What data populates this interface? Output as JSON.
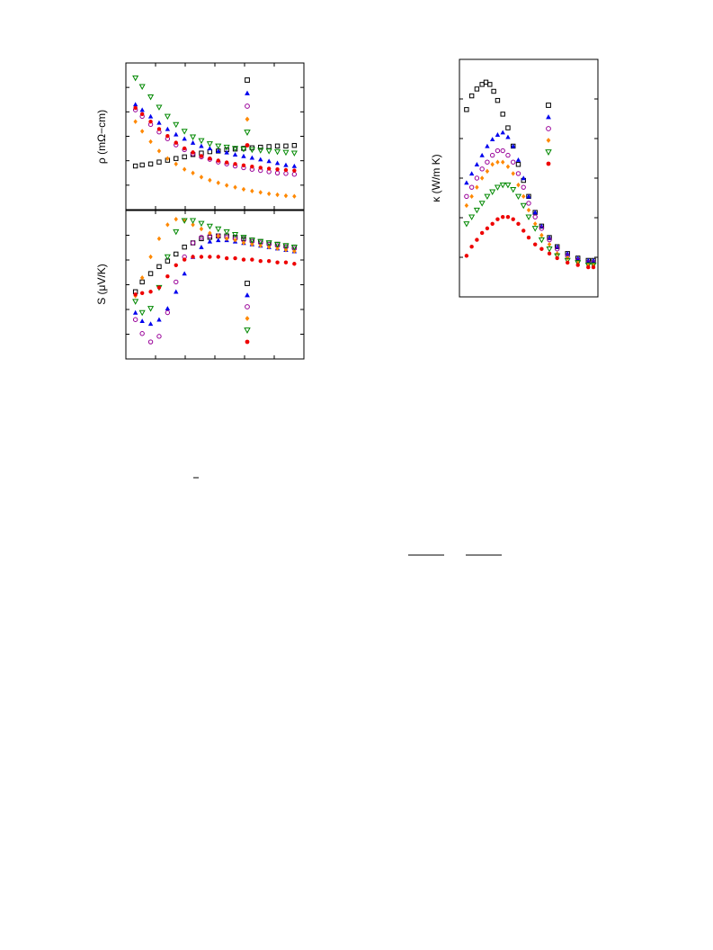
{
  "chart_data": [
    {
      "type": "scatter",
      "panel": "resistivity",
      "ylabel": "ρ (mΩ−cm)",
      "x_scale": "linear",
      "y_scale": "log",
      "legend_placement": "top-right",
      "colors": [
        "#000000",
        "#0000ee",
        "#990099",
        "#ff8800",
        "#008800",
        "#ee0000"
      ],
      "markers": [
        "square-open",
        "triangle-up",
        "circle-open",
        "diamond",
        "triangle-down-open",
        "circle"
      ],
      "series": [
        {
          "x": [
            0.03,
            0.07,
            0.12,
            0.17,
            0.22,
            0.27,
            0.32,
            0.37,
            0.42,
            0.47,
            0.52,
            0.57,
            0.62,
            0.67,
            0.72,
            0.77,
            0.82,
            0.87,
            0.92,
            0.97
          ],
          "y": [
            0.16,
            0.165,
            0.17,
            0.18,
            0.19,
            0.2,
            0.21,
            0.225,
            0.235,
            0.245,
            0.25,
            0.26,
            0.265,
            0.27,
            0.275,
            0.28,
            0.285,
            0.29,
            0.29,
            0.295
          ]
        },
        {
          "x": [
            0.03,
            0.07,
            0.12,
            0.17,
            0.22,
            0.27,
            0.32,
            0.37,
            0.42,
            0.47,
            0.52,
            0.57,
            0.62,
            0.67,
            0.72,
            0.77,
            0.82,
            0.87,
            0.92,
            0.97
          ],
          "y": [
            1.0,
            0.85,
            0.7,
            0.58,
            0.48,
            0.41,
            0.36,
            0.32,
            0.29,
            0.27,
            0.25,
            0.24,
            0.225,
            0.215,
            0.205,
            0.195,
            0.185,
            0.175,
            0.165,
            0.16
          ]
        },
        {
          "x": [
            0.03,
            0.07,
            0.12,
            0.17,
            0.22,
            0.27,
            0.32,
            0.37,
            0.42,
            0.47,
            0.52,
            0.57,
            0.62,
            0.67,
            0.72,
            0.77,
            0.82,
            0.87,
            0.92,
            0.97
          ],
          "y": [
            0.85,
            0.7,
            0.55,
            0.44,
            0.36,
            0.3,
            0.26,
            0.23,
            0.21,
            0.195,
            0.18,
            0.17,
            0.16,
            0.152,
            0.145,
            0.14,
            0.135,
            0.13,
            0.128,
            0.125
          ]
        },
        {
          "x": [
            0.03,
            0.07,
            0.12,
            0.17,
            0.22,
            0.27,
            0.32,
            0.37,
            0.42,
            0.47,
            0.52,
            0.57,
            0.62,
            0.67,
            0.72,
            0.77,
            0.82,
            0.87,
            0.92,
            0.97
          ],
          "y": [
            0.6,
            0.45,
            0.33,
            0.25,
            0.2,
            0.17,
            0.145,
            0.13,
            0.115,
            0.105,
            0.097,
            0.09,
            0.085,
            0.08,
            0.076,
            0.073,
            0.07,
            0.068,
            0.066,
            0.065
          ]
        },
        {
          "x": [
            0.03,
            0.07,
            0.12,
            0.17,
            0.22,
            0.27,
            0.32,
            0.37,
            0.42,
            0.47,
            0.52,
            0.57,
            0.62,
            0.67,
            0.72,
            0.77,
            0.82,
            0.87,
            0.92,
            0.97
          ],
          "y": [
            2.2,
            1.7,
            1.25,
            0.92,
            0.7,
            0.55,
            0.45,
            0.38,
            0.34,
            0.31,
            0.29,
            0.28,
            0.27,
            0.265,
            0.26,
            0.255,
            0.25,
            0.245,
            0.24,
            0.235
          ]
        },
        {
          "x": [
            0.03,
            0.07,
            0.12,
            0.17,
            0.22,
            0.27,
            0.32,
            0.37,
            0.42,
            0.47,
            0.52,
            0.57,
            0.62,
            0.67,
            0.72,
            0.77,
            0.82,
            0.87,
            0.92,
            0.97
          ],
          "y": [
            0.9,
            0.75,
            0.6,
            0.48,
            0.39,
            0.32,
            0.27,
            0.24,
            0.215,
            0.2,
            0.188,
            0.178,
            0.17,
            0.163,
            0.157,
            0.152,
            0.148,
            0.145,
            0.142,
            0.14
          ]
        }
      ]
    },
    {
      "type": "scatter",
      "panel": "thermopower",
      "ylabel": "S (μV/K)",
      "x_scale": "linear",
      "legend_placement": "bottom-right",
      "colors": [
        "#000000",
        "#0000ee",
        "#990099",
        "#ff8800",
        "#008800",
        "#ee0000"
      ],
      "markers": [
        "square-open",
        "triangle-up",
        "circle-open",
        "diamond",
        "triangle-down-open",
        "circle"
      ],
      "series": [
        {
          "x": [
            0.03,
            0.07,
            0.12,
            0.17,
            0.22,
            0.27,
            0.32,
            0.37,
            0.42,
            0.47,
            0.52,
            0.57,
            0.62,
            0.67,
            0.72,
            0.77,
            0.82,
            0.87,
            0.92,
            0.97
          ],
          "y": [
            0.45,
            0.52,
            0.58,
            0.63,
            0.67,
            0.72,
            0.77,
            0.8,
            0.83,
            0.84,
            0.85,
            0.85,
            0.84,
            0.83,
            0.82,
            0.81,
            0.8,
            0.79,
            0.78,
            0.77
          ]
        },
        {
          "x": [
            0.03,
            0.07,
            0.12,
            0.17,
            0.22,
            0.27,
            0.32,
            0.37,
            0.42,
            0.47,
            0.52,
            0.57,
            0.62,
            0.67,
            0.72,
            0.77,
            0.82,
            0.87,
            0.92,
            0.97
          ],
          "y": [
            0.3,
            0.24,
            0.22,
            0.25,
            0.33,
            0.45,
            0.58,
            0.7,
            0.77,
            0.81,
            0.82,
            0.82,
            0.81,
            0.8,
            0.79,
            0.78,
            0.77,
            0.76,
            0.75,
            0.74
          ]
        },
        {
          "x": [
            0.03,
            0.07,
            0.12,
            0.17,
            0.22,
            0.27,
            0.32,
            0.37,
            0.42,
            0.47,
            0.52,
            0.57,
            0.62,
            0.67,
            0.72,
            0.77,
            0.82,
            0.87,
            0.92,
            0.97
          ],
          "y": [
            0.25,
            0.15,
            0.09,
            0.13,
            0.3,
            0.52,
            0.7,
            0.8,
            0.84,
            0.85,
            0.85,
            0.84,
            0.83,
            0.82,
            0.81,
            0.8,
            0.79,
            0.78,
            0.77,
            0.76
          ]
        },
        {
          "x": [
            0.03,
            0.07,
            0.12,
            0.17,
            0.22,
            0.27,
            0.32,
            0.37,
            0.42,
            0.47,
            0.52,
            0.57,
            0.62,
            0.67,
            0.72,
            0.77,
            0.82,
            0.87,
            0.92,
            0.97
          ],
          "y": [
            0.42,
            0.55,
            0.7,
            0.83,
            0.93,
            0.97,
            0.96,
            0.93,
            0.9,
            0.87,
            0.85,
            0.83,
            0.82,
            0.8,
            0.79,
            0.78,
            0.77,
            0.76,
            0.75,
            0.74
          ]
        },
        {
          "x": [
            0.03,
            0.07,
            0.12,
            0.17,
            0.22,
            0.27,
            0.32,
            0.37,
            0.42,
            0.47,
            0.52,
            0.57,
            0.62,
            0.67,
            0.72,
            0.77,
            0.82,
            0.87,
            0.92,
            0.97
          ],
          "y": [
            0.38,
            0.3,
            0.33,
            0.48,
            0.7,
            0.88,
            0.96,
            0.96,
            0.94,
            0.92,
            0.9,
            0.88,
            0.86,
            0.84,
            0.82,
            0.81,
            0.8,
            0.79,
            0.78,
            0.77
          ]
        },
        {
          "x": [
            0.03,
            0.07,
            0.12,
            0.17,
            0.22,
            0.27,
            0.32,
            0.37,
            0.42,
            0.47,
            0.52,
            0.57,
            0.62,
            0.67,
            0.72,
            0.77,
            0.82,
            0.87,
            0.92,
            0.97
          ],
          "y": [
            0.43,
            0.44,
            0.45,
            0.48,
            0.56,
            0.64,
            0.68,
            0.7,
            0.7,
            0.7,
            0.7,
            0.69,
            0.69,
            0.68,
            0.68,
            0.67,
            0.67,
            0.66,
            0.66,
            0.65
          ]
        }
      ]
    },
    {
      "type": "scatter",
      "panel": "thermal-conductivity",
      "ylabel": "κ (W/m K)",
      "x_scale": "log",
      "legend_placement": "top-right",
      "colors": [
        "#000000",
        "#0000ee",
        "#990099",
        "#ff8800",
        "#008800",
        "#ee0000"
      ],
      "markers": [
        "square-open",
        "triangle-up",
        "circle-open",
        "diamond",
        "triangle-down-open",
        "circle"
      ],
      "series": [
        {
          "x": [
            0.02,
            0.06,
            0.1,
            0.14,
            0.17,
            0.2,
            0.23,
            0.26,
            0.3,
            0.34,
            0.38,
            0.42,
            0.46,
            0.5,
            0.55,
            0.6,
            0.66,
            0.72,
            0.8,
            0.88,
            0.96,
            1.0
          ],
          "y": [
            0.8,
            0.86,
            0.89,
            0.91,
            0.92,
            0.91,
            0.88,
            0.84,
            0.78,
            0.72,
            0.64,
            0.56,
            0.49,
            0.42,
            0.35,
            0.29,
            0.24,
            0.2,
            0.17,
            0.15,
            0.14,
            0.14
          ]
        },
        {
          "x": [
            0.02,
            0.06,
            0.1,
            0.14,
            0.18,
            0.22,
            0.26,
            0.3,
            0.34,
            0.38,
            0.42,
            0.46,
            0.5,
            0.55,
            0.6,
            0.66,
            0.72,
            0.8,
            0.88,
            0.96,
            1.0
          ],
          "y": [
            0.48,
            0.52,
            0.56,
            0.6,
            0.64,
            0.67,
            0.69,
            0.7,
            0.68,
            0.64,
            0.58,
            0.5,
            0.42,
            0.35,
            0.29,
            0.24,
            0.2,
            0.17,
            0.15,
            0.14,
            0.14
          ]
        },
        {
          "x": [
            0.02,
            0.06,
            0.1,
            0.14,
            0.18,
            0.22,
            0.26,
            0.3,
            0.34,
            0.38,
            0.42,
            0.46,
            0.5,
            0.55,
            0.6,
            0.66,
            0.72,
            0.8,
            0.88,
            0.96,
            1.0
          ],
          "y": [
            0.42,
            0.46,
            0.5,
            0.54,
            0.57,
            0.6,
            0.62,
            0.62,
            0.6,
            0.57,
            0.52,
            0.46,
            0.39,
            0.33,
            0.28,
            0.23,
            0.19,
            0.16,
            0.14,
            0.13,
            0.13
          ]
        },
        {
          "x": [
            0.02,
            0.06,
            0.1,
            0.14,
            0.18,
            0.22,
            0.26,
            0.3,
            0.34,
            0.38,
            0.42,
            0.46,
            0.5,
            0.55,
            0.6,
            0.66,
            0.72,
            0.8,
            0.88,
            0.96,
            1.0
          ],
          "y": [
            0.38,
            0.42,
            0.46,
            0.5,
            0.53,
            0.56,
            0.57,
            0.57,
            0.55,
            0.52,
            0.47,
            0.42,
            0.36,
            0.3,
            0.25,
            0.21,
            0.17,
            0.15,
            0.13,
            0.12,
            0.12
          ]
        },
        {
          "x": [
            0.02,
            0.06,
            0.1,
            0.14,
            0.18,
            0.22,
            0.26,
            0.3,
            0.34,
            0.38,
            0.42,
            0.46,
            0.5,
            0.55,
            0.6,
            0.66,
            0.72,
            0.8,
            0.88,
            0.96,
            1.0
          ],
          "y": [
            0.3,
            0.33,
            0.36,
            0.39,
            0.42,
            0.44,
            0.46,
            0.47,
            0.47,
            0.45,
            0.42,
            0.38,
            0.33,
            0.28,
            0.23,
            0.19,
            0.16,
            0.14,
            0.13,
            0.12,
            0.12
          ]
        },
        {
          "x": [
            0.02,
            0.06,
            0.1,
            0.14,
            0.18,
            0.22,
            0.26,
            0.3,
            0.34,
            0.38,
            0.42,
            0.46,
            0.5,
            0.55,
            0.6,
            0.66,
            0.72,
            0.8,
            0.88,
            0.96,
            1.0
          ],
          "y": [
            0.16,
            0.2,
            0.23,
            0.26,
            0.28,
            0.3,
            0.32,
            0.33,
            0.33,
            0.32,
            0.3,
            0.27,
            0.24,
            0.21,
            0.19,
            0.17,
            0.15,
            0.13,
            0.12,
            0.11,
            0.11
          ]
        }
      ]
    }
  ]
}
